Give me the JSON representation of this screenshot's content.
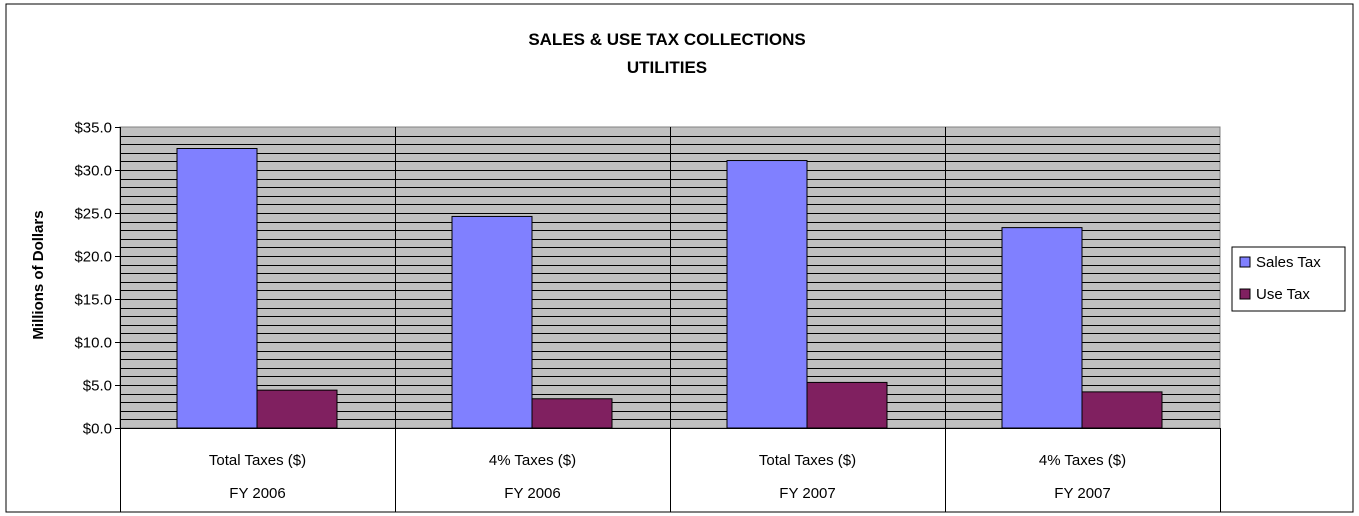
{
  "chart_data": {
    "type": "bar",
    "title": "SALES & USE TAX COLLECTIONS",
    "subtitle": "UTILITIES",
    "ylabel": "Millions of Dollars",
    "xlabel": "",
    "ylim": [
      0,
      35
    ],
    "y_ticks": [
      "$0.0",
      "$5.0",
      "$10.0",
      "$15.0",
      "$20.0",
      "$25.0",
      "$30.0",
      "$35.0"
    ],
    "categories": [
      "Total Taxes ($)",
      "4% Taxes ($)",
      "Total Taxes ($)",
      "4% Taxes ($)"
    ],
    "groups": [
      "FY 2006",
      "FY 2006",
      "FY 2007",
      "FY 2007"
    ],
    "series": [
      {
        "name": "Sales Tax",
        "color": "#8080ff",
        "values": [
          32.5,
          24.6,
          31.1,
          23.3
        ]
      },
      {
        "name": "Use Tax",
        "color": "#802060",
        "values": [
          4.4,
          3.4,
          5.3,
          4.2
        ]
      }
    ],
    "grid": true,
    "plot_background": "#c0c0c0",
    "legend_position": "right"
  }
}
